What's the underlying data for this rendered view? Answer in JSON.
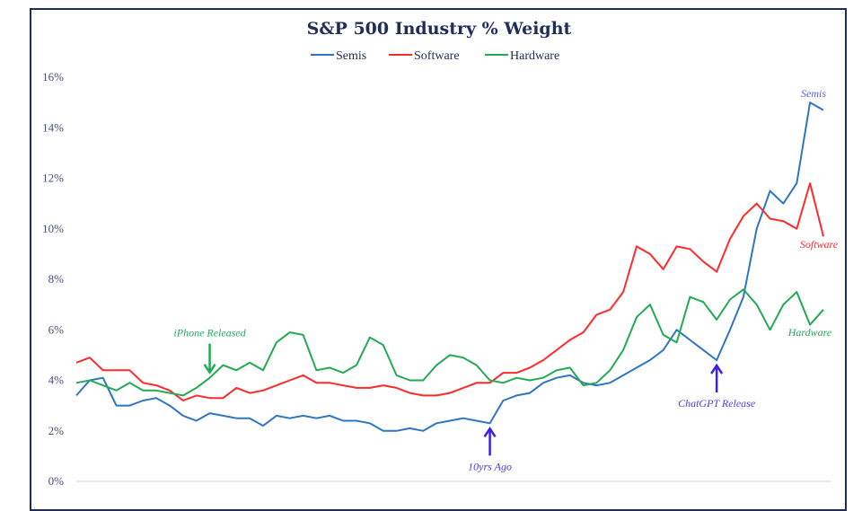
{
  "chart_data": {
    "type": "line",
    "title": "S&P 500 Industry % Weight",
    "xlabel": "",
    "ylabel": "",
    "ylim": [
      0,
      16
    ],
    "yticks": [
      "0%",
      "2%",
      "4%",
      "6%",
      "8%",
      "10%",
      "12%",
      "14%",
      "16%"
    ],
    "ytick_values": [
      0,
      2,
      4,
      6,
      8,
      10,
      12,
      14,
      16
    ],
    "grid": false,
    "legend": {
      "placement": "top-center",
      "entries": [
        "Semis",
        "Software",
        "Hardware"
      ]
    },
    "series": [
      {
        "name": "Semis",
        "color": "#2e75c4",
        "values": [
          3.4,
          4.0,
          4.1,
          3.0,
          3.0,
          3.2,
          3.3,
          3.0,
          2.6,
          2.4,
          2.7,
          2.6,
          2.5,
          2.5,
          2.2,
          2.6,
          2.5,
          2.6,
          2.5,
          2.6,
          2.4,
          2.4,
          2.3,
          2.0,
          2.0,
          2.1,
          2.0,
          2.3,
          2.4,
          2.5,
          2.4,
          2.3,
          3.2,
          3.4,
          3.5,
          3.9,
          4.1,
          4.2,
          3.9,
          3.8,
          3.9,
          4.2,
          4.5,
          4.8,
          5.2,
          6.0,
          5.6,
          5.2,
          4.8,
          6.0,
          7.3,
          10.0,
          11.5,
          11.0,
          11.8,
          15.0,
          14.7
        ]
      },
      {
        "name": "Software",
        "color": "#ff2a2a",
        "values": [
          4.7,
          4.9,
          4.4,
          4.4,
          4.4,
          3.9,
          3.8,
          3.6,
          3.2,
          3.4,
          3.3,
          3.3,
          3.7,
          3.5,
          3.6,
          3.8,
          4.0,
          4.2,
          3.9,
          3.9,
          3.8,
          3.7,
          3.7,
          3.8,
          3.7,
          3.5,
          3.4,
          3.4,
          3.5,
          3.7,
          3.9,
          3.9,
          4.3,
          4.3,
          4.5,
          4.8,
          5.2,
          5.6,
          5.9,
          6.6,
          6.8,
          7.5,
          9.3,
          9.0,
          8.4,
          9.3,
          9.2,
          8.7,
          8.3,
          9.6,
          10.5,
          11.0,
          10.4,
          10.3,
          10.0,
          11.8,
          9.7
        ]
      },
      {
        "name": "Hardware",
        "color": "#22aa55",
        "values": [
          3.9,
          4.0,
          3.8,
          3.6,
          3.9,
          3.6,
          3.6,
          3.5,
          3.4,
          3.7,
          4.1,
          4.6,
          4.4,
          4.7,
          4.4,
          5.5,
          5.9,
          5.8,
          4.4,
          4.5,
          4.3,
          4.6,
          5.7,
          5.4,
          4.2,
          4.0,
          4.0,
          4.6,
          5.0,
          4.9,
          4.6,
          4.0,
          3.9,
          4.1,
          4.0,
          4.1,
          4.4,
          4.5,
          3.8,
          3.9,
          4.4,
          5.2,
          6.5,
          7.0,
          5.8,
          5.5,
          7.3,
          7.1,
          6.4,
          7.2,
          7.6,
          7.0,
          6.0,
          7.0,
          7.5,
          6.2,
          6.8
        ]
      }
    ],
    "annotations": [
      {
        "text": "iPhone Released",
        "color": "#22aa55",
        "arrow": "down",
        "series": "Hardware",
        "index": 10
      },
      {
        "text": "10yrs Ago",
        "color": "#4a3cf0",
        "arrow": "up",
        "series": "Semis",
        "index": 31
      },
      {
        "text": "ChatGPT Release",
        "color": "#4a3cf0",
        "arrow": "up",
        "series": "Semis",
        "index": 48
      }
    ],
    "end_labels": [
      {
        "text": "Semis",
        "color": "#5b5bf0"
      },
      {
        "text": "Software",
        "color": "#ff2a2a"
      },
      {
        "text": "Hardware",
        "color": "#22aa55"
      }
    ]
  }
}
